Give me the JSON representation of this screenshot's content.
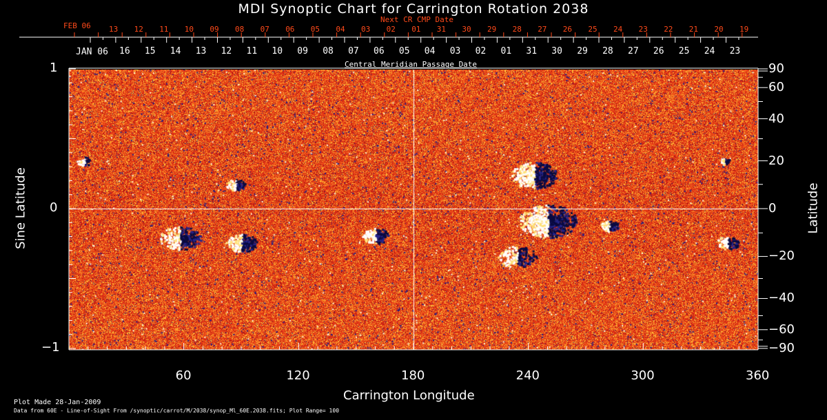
{
  "title": "MDI Synoptic Chart for Carrington Rotation 2038",
  "top_axis": {
    "next_cr_label": "Next CR CMP Date",
    "next_cr_start": "FEB 06",
    "next_cr_dates": [
      "13",
      "12",
      "11",
      "10",
      "09",
      "08",
      "07",
      "06",
      "05",
      "04",
      "03",
      "02",
      "01",
      "31",
      "30",
      "29",
      "28",
      "27",
      "26",
      "25",
      "24",
      "23",
      "22",
      "21",
      "20",
      "19"
    ],
    "cmp_start": "JAN 06",
    "cmp_dates": [
      "16",
      "15",
      "14",
      "13",
      "12",
      "11",
      "10",
      "09",
      "08",
      "07",
      "06",
      "05",
      "04",
      "03",
      "02",
      "01",
      "31",
      "30",
      "29",
      "28",
      "27",
      "26",
      "25",
      "24",
      "23"
    ],
    "cmp_label": "Central Meridian Passage Date"
  },
  "footer": {
    "plot_made": "Plot Made 28-Jan-2009",
    "data_info": "Data from 60E - Line-of-Sight From /synoptic/carrot/M/2038/synop_Ml_60E.2038.fits; Plot Range=  100"
  },
  "colors": {
    "background": "#000000",
    "accent_red": "#ff4a1a",
    "map_base": "#e8401a",
    "positive": "#ffffff",
    "negative": "#1a1a7a"
  },
  "chart_data": {
    "type": "heatmap",
    "title": "MDI Synoptic Chart for Carrington Rotation 2038",
    "xlabel": "Carrington Longitude",
    "ylabel": "Sine Latitude",
    "y2label": "Latitude",
    "xlim": [
      0,
      360
    ],
    "ylim": [
      -1,
      1
    ],
    "x_ticks": [
      60,
      120,
      180,
      240,
      300,
      360
    ],
    "x_tick_labels": [
      "60",
      "120",
      "180",
      "240",
      "300",
      "360"
    ],
    "y_ticks": [
      1,
      0,
      -1
    ],
    "y_tick_labels": [
      "1",
      "0",
      "−1"
    ],
    "y2_ticks": [
      90,
      60,
      40,
      20,
      0,
      -20,
      -40,
      -60,
      -90
    ],
    "y2_tick_labels": [
      "90",
      "60",
      "40",
      "20",
      "0",
      "−20",
      "−40",
      "−60",
      "−90"
    ],
    "plot_range": 100
  }
}
